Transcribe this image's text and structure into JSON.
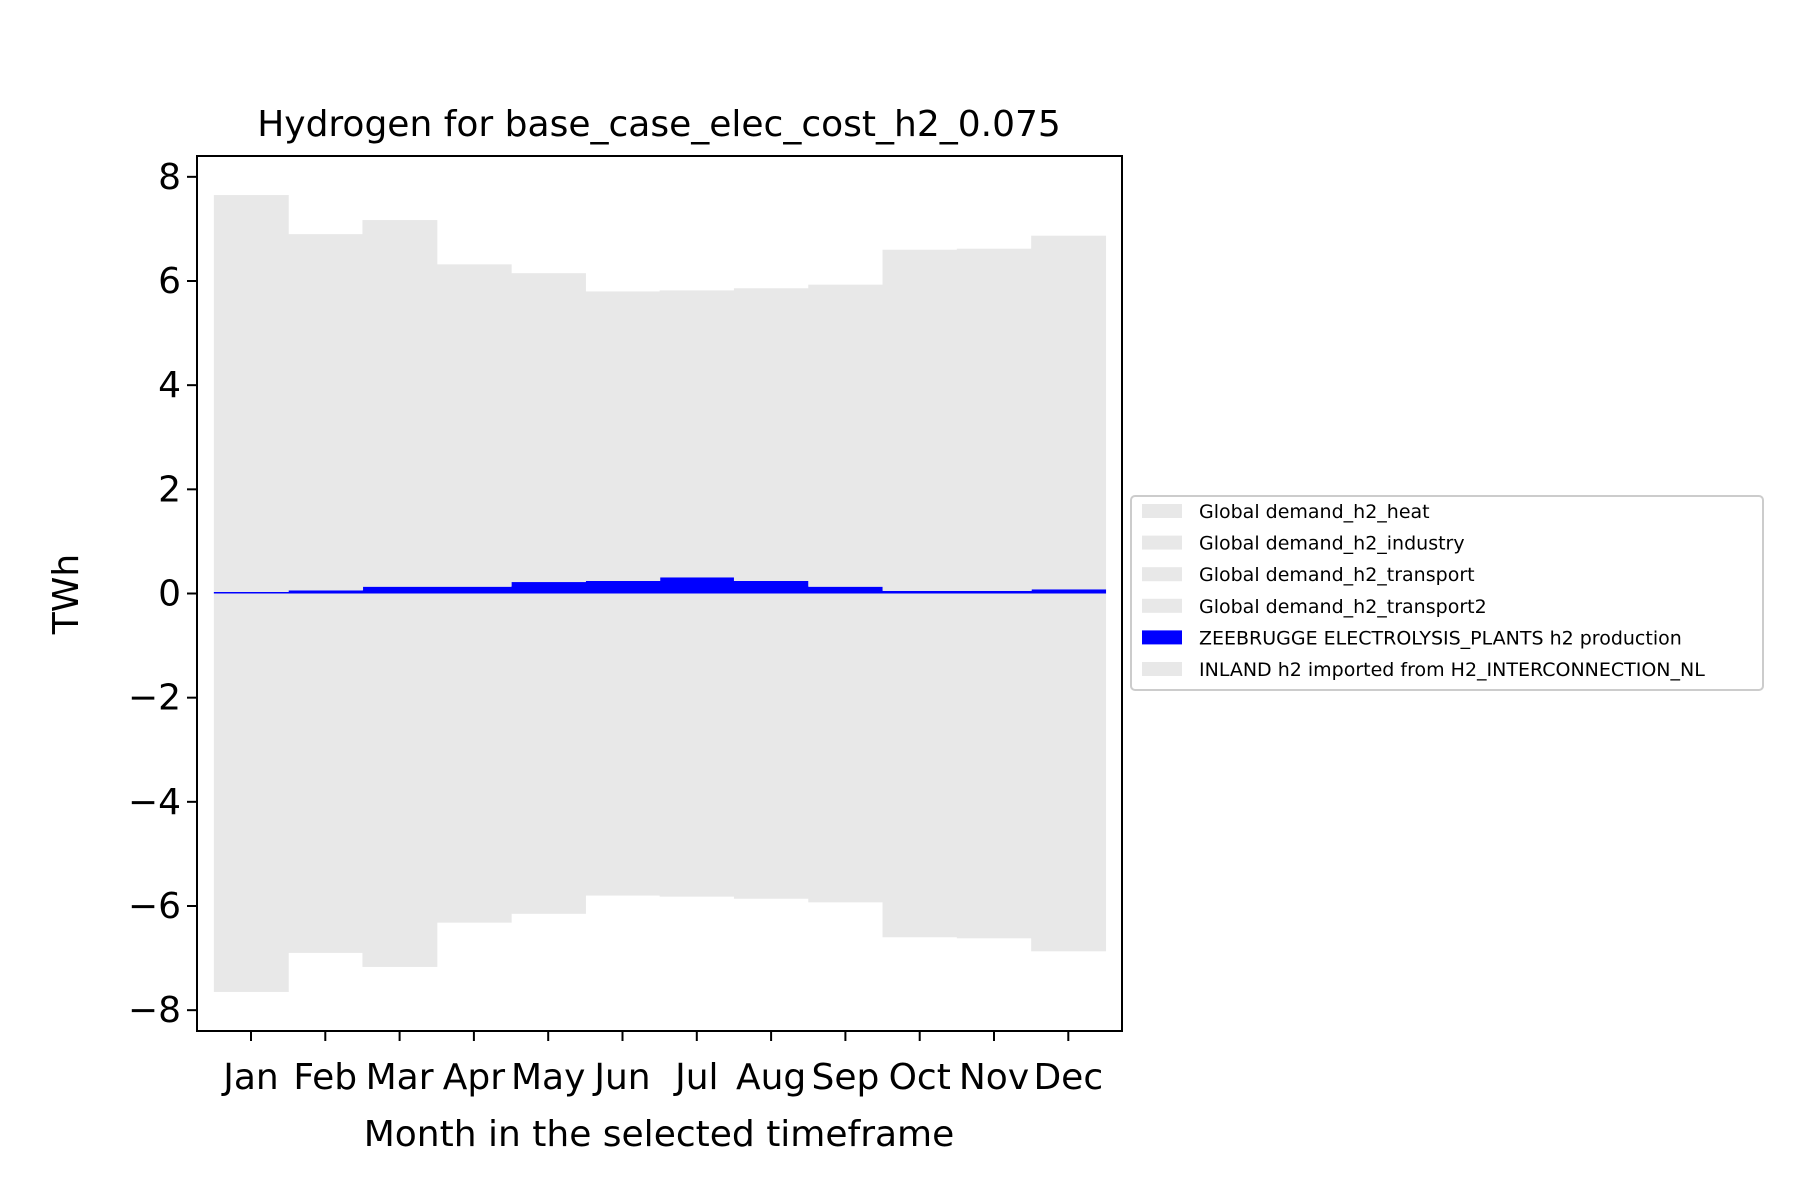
{
  "chart_data": {
    "type": "bar",
    "title": "Hydrogen for base_case_elec_cost_h2_0.075",
    "xlabel": "Month in the selected timeframe",
    "ylabel": "TWh",
    "ylim": [
      -8.4,
      8.4
    ],
    "yticks": [
      -8,
      -6,
      -4,
      -2,
      0,
      2,
      4,
      6,
      8
    ],
    "ytick_labels": [
      "−8",
      "−6",
      "−4",
      "−2",
      "0",
      "2",
      "4",
      "6",
      "8"
    ],
    "categories": [
      "Jan",
      "Feb",
      "Mar",
      "Apr",
      "May",
      "Jun",
      "Jul",
      "Aug",
      "Sep",
      "Oct",
      "Nov",
      "Dec"
    ],
    "stacking": "stacked",
    "grid": false,
    "legend_position": "center-right outside",
    "series": [
      {
        "name": "Global demand_h2_heat",
        "color": "#e8e8e8",
        "values": [
          0,
          0,
          0,
          0,
          0,
          0,
          0,
          0,
          0,
          0,
          0,
          0
        ]
      },
      {
        "name": "Global demand_h2_industry",
        "color": "#e8e8e8",
        "values": [
          -7.65,
          -6.9,
          -7.17,
          -6.32,
          -6.15,
          -5.8,
          -5.82,
          -5.86,
          -5.93,
          -6.6,
          -6.62,
          -6.87
        ]
      },
      {
        "name": "Global demand_h2_transport",
        "color": "#e8e8e8",
        "values": [
          0,
          0,
          0,
          0,
          0,
          0,
          0,
          0,
          0,
          0,
          0,
          0
        ]
      },
      {
        "name": "Global demand_h2_transport2",
        "color": "#e8e8e8",
        "values": [
          0,
          0,
          0,
          0,
          0,
          0,
          0,
          0,
          0,
          0,
          0,
          0
        ]
      },
      {
        "name": "ZEEBRUGGE ELECTROLYSIS_PLANTS h2 production",
        "color": "#0000ff",
        "values": [
          0.03,
          0.06,
          0.13,
          0.13,
          0.22,
          0.24,
          0.31,
          0.24,
          0.13,
          0.05,
          0.05,
          0.08
        ]
      },
      {
        "name": "INLAND h2 imported from H2_INTERCONNECTION_NL",
        "color": "#e8e8e8",
        "values": [
          7.62,
          6.84,
          7.04,
          6.19,
          5.93,
          5.56,
          5.51,
          5.62,
          5.8,
          6.55,
          6.57,
          6.79
        ]
      }
    ]
  }
}
